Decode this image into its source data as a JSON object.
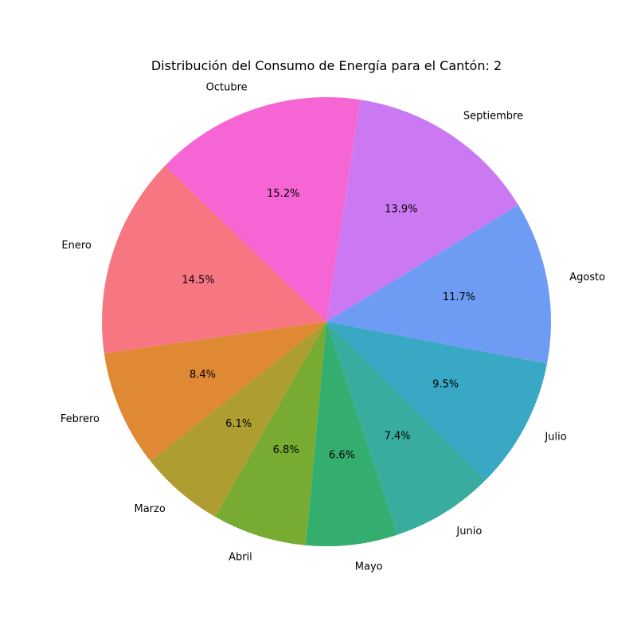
{
  "chart_data": {
    "type": "pie",
    "title": "Distribución del Consumo de Energía para el Cantón: 2",
    "categories": [
      "Enero",
      "Febrero",
      "Marzo",
      "Abril",
      "Mayo",
      "Junio",
      "Julio",
      "Agosto",
      "Septiembre",
      "Octubre"
    ],
    "values": [
      14.5,
      8.4,
      6.1,
      6.8,
      6.6,
      7.4,
      9.5,
      11.7,
      13.9,
      15.2
    ],
    "percent_labels": [
      "14.5%",
      "8.4%",
      "6.1%",
      "6.8%",
      "6.6%",
      "7.4%",
      "9.5%",
      "11.7%",
      "13.9%",
      "15.2%"
    ],
    "colors": [
      "#f67682",
      "#df8935",
      "#ae9d31",
      "#77ab31",
      "#34ae6f",
      "#37ac9f",
      "#39a8c5",
      "#6e9cf4",
      "#cb78f3",
      "#f665d4"
    ],
    "start_angle_deg": 136,
    "direction": "counterclockwise",
    "legend": "none"
  }
}
